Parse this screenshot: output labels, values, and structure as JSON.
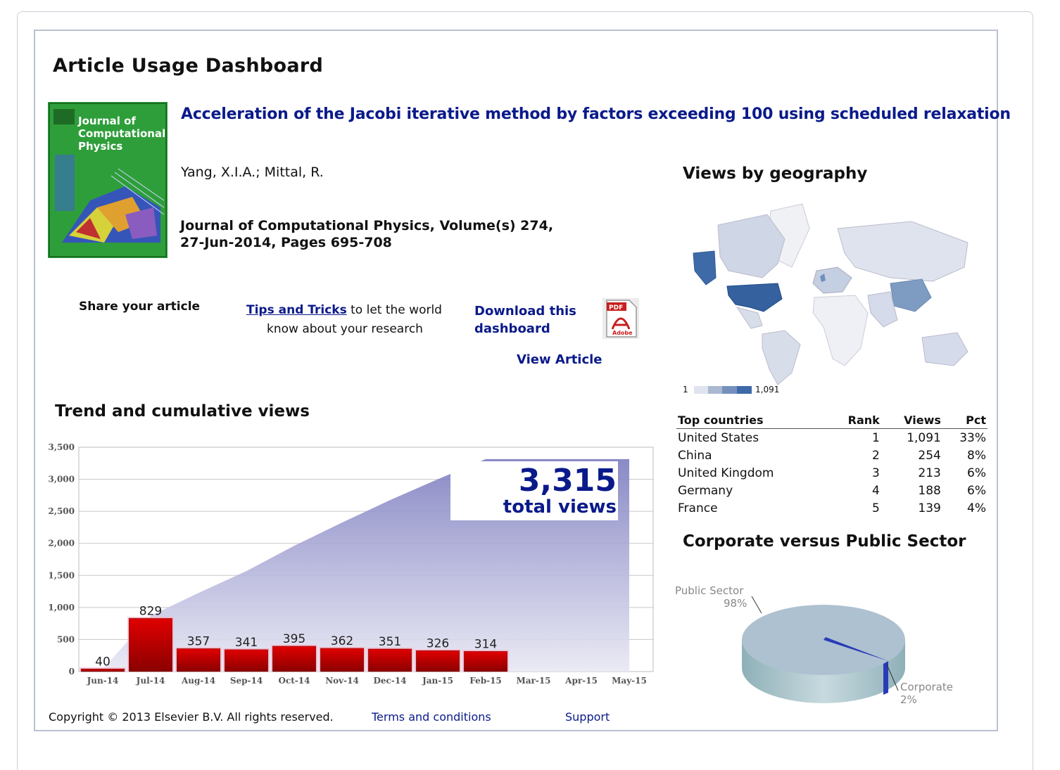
{
  "page": {
    "title": "Article Usage Dashboard"
  },
  "article": {
    "title": "Acceleration of the Jacobi iterative method by factors exceeding 100 using scheduled relaxation",
    "authors": "Yang, X.I.A.; Mittal, R.",
    "journal_line1": "Journal of Computational Physics, Volume(s) 274,",
    "journal_line2": "27-Jun-2014, Pages 695-708",
    "cover": {
      "line1": "Journal of",
      "line2": "Computational",
      "line3": "Physics"
    }
  },
  "actions": {
    "share_label": "Share your article",
    "tips_link": "Tips and Tricks",
    "tips_rest1": " to let the world",
    "tips_rest2": "know about your research",
    "download_line1": "Download this",
    "download_line2": "dashboard",
    "pdf_icon_top": "PDF",
    "pdf_icon_bottom": "Adobe",
    "view_article": "View Article"
  },
  "trend": {
    "title": "Trend and cumulative views",
    "total_value": "3,315",
    "total_label": "total views"
  },
  "chart_data": {
    "type": "bar",
    "categories": [
      "Jun-14",
      "Jul-14",
      "Aug-14",
      "Sep-14",
      "Oct-14",
      "Nov-14",
      "Dec-14",
      "Jan-15",
      "Feb-15",
      "Mar-15",
      "Apr-15",
      "May-15"
    ],
    "series": [
      {
        "type": "bar",
        "values": [
          40,
          829,
          357,
          341,
          395,
          362,
          351,
          326,
          314,
          null,
          null,
          null
        ]
      },
      {
        "type": "area",
        "values": [
          40,
          869,
          1226,
          1567,
          1962,
          2324,
          2675,
          3001,
          3315,
          3315,
          3315,
          3315
        ]
      }
    ],
    "ylim": [
      0,
      3500
    ],
    "yticks": [
      0,
      500,
      1000,
      1500,
      2000,
      2500,
      3000,
      3500
    ],
    "ytick_labels": [
      "0",
      "500",
      "1,000",
      "1,500",
      "2,000",
      "2,500",
      "3,000",
      "3,500"
    ],
    "grid": true,
    "colors": {
      "bar": "#c00000",
      "area": "#8f8fc8"
    }
  },
  "geography": {
    "title": "Views by geography",
    "legend_min": "1",
    "legend_max": "1,091",
    "table_headers": {
      "country": "Top countries",
      "rank": "Rank",
      "views": "Views",
      "pct": "Pct"
    },
    "countries": [
      {
        "name": "United States",
        "rank": "1",
        "views": "1,091",
        "pct": "33%"
      },
      {
        "name": "China",
        "rank": "2",
        "views": "254",
        "pct": "8%"
      },
      {
        "name": "United Kingdom",
        "rank": "3",
        "views": "213",
        "pct": "6%"
      },
      {
        "name": "Germany",
        "rank": "4",
        "views": "188",
        "pct": "6%"
      },
      {
        "name": "France",
        "rank": "5",
        "views": "139",
        "pct": "4%"
      }
    ]
  },
  "sector": {
    "title": "Corporate versus Public Sector",
    "public_label": "Public Sector",
    "public_pct": "98%",
    "corporate_label": "Corporate",
    "corporate_pct": "2%",
    "public_share": 0.98,
    "colors": {
      "public": "#a9bfcf",
      "corporate": "#2a3bb8"
    }
  },
  "footer": {
    "copyright": "Copyright © 2013 Elsevier B.V. All rights reserved.",
    "terms": "Terms and conditions",
    "support": "Support"
  }
}
